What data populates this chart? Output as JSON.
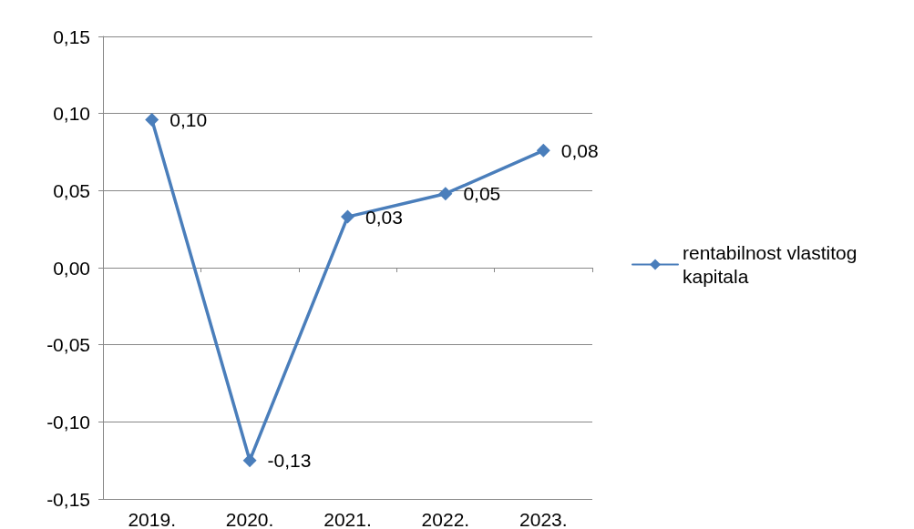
{
  "chart_data": {
    "type": "line",
    "categories": [
      "2019.",
      "2020.",
      "2021.",
      "2022.",
      "2023."
    ],
    "series": [
      {
        "name": "rentabilnost vlastitog kapitala",
        "color": "#4a7ebb",
        "values": [
          0.096,
          -0.125,
          0.033,
          0.048,
          0.076
        ],
        "value_labels": [
          "0,10",
          "-0,13",
          "0,03",
          "0,05",
          "0,08"
        ]
      }
    ],
    "ylim": [
      -0.15,
      0.15
    ],
    "yticks": [
      {
        "value": -0.15,
        "label": "-0,15"
      },
      {
        "value": -0.1,
        "label": "-0,10"
      },
      {
        "value": -0.05,
        "label": "-0,05"
      },
      {
        "value": 0,
        "label": "0,00"
      },
      {
        "value": 0.05,
        "label": "0,05"
      },
      {
        "value": 0.1,
        "label": "0,10"
      },
      {
        "value": 0.15,
        "label": "0,15"
      }
    ],
    "grid": "y",
    "legend": "right",
    "marker": "diamond",
    "line_style": "solid"
  }
}
